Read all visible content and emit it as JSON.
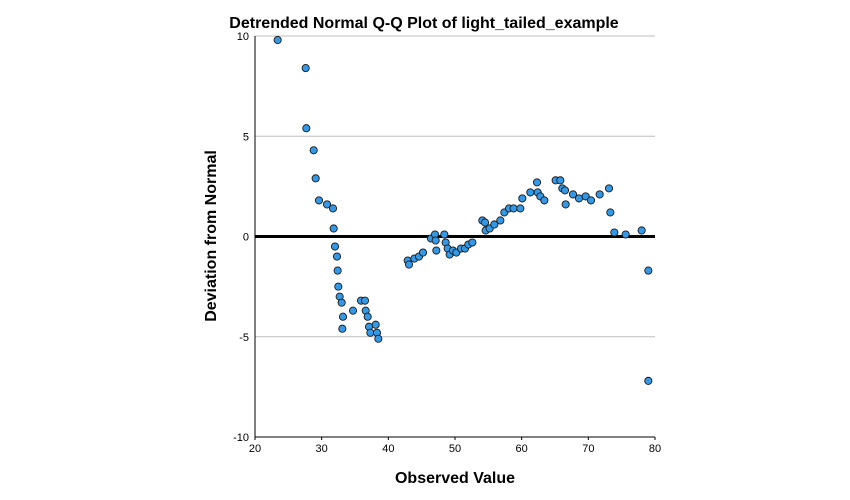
{
  "chart_data": {
    "type": "scatter",
    "title": "Detrended Normal Q-Q Plot of light_tailed_example",
    "xlabel": "Observed Value",
    "ylabel": "Deviation from Normal",
    "xlim": [
      20,
      80
    ],
    "ylim": [
      -10,
      10
    ],
    "x_ticks": [
      "20",
      "30",
      "40",
      "50",
      "60",
      "70",
      "80"
    ],
    "y_ticks": [
      "10",
      "5",
      "0",
      "-5",
      "-10"
    ],
    "grid": "horizontal",
    "reference_line_y": 0,
    "colors": {
      "point_fill": "#3399e6",
      "point_stroke": "#1a1a1a",
      "grid": "#bdbdbd",
      "reference_line": "#000000"
    },
    "points": [
      [
        23.4,
        9.8
      ],
      [
        27.6,
        8.4
      ],
      [
        27.7,
        5.4
      ],
      [
        28.8,
        4.3
      ],
      [
        29.1,
        2.9
      ],
      [
        29.6,
        1.8
      ],
      [
        30.8,
        1.6
      ],
      [
        31.7,
        1.4
      ],
      [
        31.8,
        0.4
      ],
      [
        32.0,
        -0.5
      ],
      [
        32.3,
        -1.0
      ],
      [
        32.4,
        -1.7
      ],
      [
        32.5,
        -2.5
      ],
      [
        32.7,
        -3.0
      ],
      [
        33.0,
        -3.3
      ],
      [
        33.2,
        -4.0
      ],
      [
        33.1,
        -4.6
      ],
      [
        34.7,
        -3.7
      ],
      [
        35.9,
        -3.2
      ],
      [
        36.5,
        -3.2
      ],
      [
        36.6,
        -3.7
      ],
      [
        36.9,
        -4.0
      ],
      [
        37.1,
        -4.5
      ],
      [
        37.3,
        -4.8
      ],
      [
        38.1,
        -4.4
      ],
      [
        38.3,
        -4.8
      ],
      [
        38.5,
        -5.1
      ],
      [
        42.9,
        -1.2
      ],
      [
        43.1,
        -1.4
      ],
      [
        43.9,
        -1.1
      ],
      [
        44.6,
        -1.0
      ],
      [
        45.2,
        -0.8
      ],
      [
        46.4,
        -0.1
      ],
      [
        47.0,
        0.1
      ],
      [
        47.1,
        -0.2
      ],
      [
        47.2,
        -0.7
      ],
      [
        48.4,
        0.1
      ],
      [
        48.6,
        -0.3
      ],
      [
        48.9,
        -0.6
      ],
      [
        49.2,
        -0.9
      ],
      [
        49.7,
        -0.7
      ],
      [
        50.2,
        -0.8
      ],
      [
        50.9,
        -0.6
      ],
      [
        51.5,
        -0.6
      ],
      [
        52.0,
        -0.4
      ],
      [
        52.6,
        -0.3
      ],
      [
        54.1,
        0.8
      ],
      [
        54.5,
        0.7
      ],
      [
        54.6,
        0.3
      ],
      [
        55.2,
        0.4
      ],
      [
        55.9,
        0.6
      ],
      [
        56.8,
        0.8
      ],
      [
        57.4,
        1.2
      ],
      [
        58.1,
        1.4
      ],
      [
        58.8,
        1.4
      ],
      [
        59.8,
        1.4
      ],
      [
        60.1,
        1.9
      ],
      [
        61.3,
        2.2
      ],
      [
        62.3,
        2.7
      ],
      [
        62.4,
        2.2
      ],
      [
        62.8,
        2.0
      ],
      [
        63.4,
        1.8
      ],
      [
        65.1,
        2.8
      ],
      [
        65.8,
        2.8
      ],
      [
        66.1,
        2.4
      ],
      [
        66.5,
        2.3
      ],
      [
        66.6,
        1.6
      ],
      [
        67.7,
        2.1
      ],
      [
        68.6,
        1.9
      ],
      [
        69.6,
        2.0
      ],
      [
        70.4,
        1.8
      ],
      [
        71.7,
        2.1
      ],
      [
        73.1,
        2.4
      ],
      [
        73.3,
        1.2
      ],
      [
        73.9,
        0.2
      ],
      [
        75.6,
        0.1
      ],
      [
        78.0,
        0.3
      ],
      [
        79.0,
        -1.7
      ],
      [
        79.0,
        -7.2
      ]
    ]
  }
}
